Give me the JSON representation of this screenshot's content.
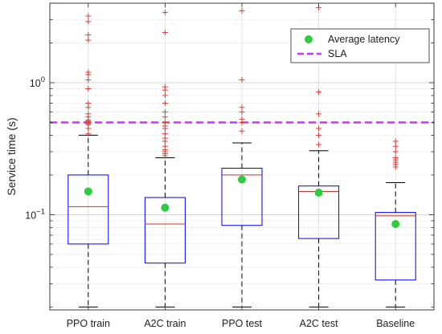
{
  "chart_data": {
    "type": "boxplot",
    "ylabel": "Service time (s)",
    "yscale": "log",
    "ylim": [
      0.019,
      4
    ],
    "y_tick_labels": [
      {
        "value": 0.1,
        "base": "10",
        "exp": "−1"
      },
      {
        "value": 1,
        "base": "10",
        "exp": "0"
      }
    ],
    "grid": true,
    "legend_position": "top-right",
    "categories": [
      "PPO train",
      "A2C train",
      "PPO test",
      "A2C test",
      "Baseline"
    ],
    "boxes": [
      {
        "q1": 0.06,
        "median": 0.115,
        "q3": 0.2,
        "whisker_low": 0.02,
        "whisker_high": 0.4,
        "mean": 0.15,
        "outliers": [
          0.41,
          0.45,
          0.48,
          0.49,
          0.5,
          0.51,
          0.52,
          0.55,
          0.58,
          0.65,
          0.7,
          0.9,
          1.05,
          1.15,
          1.2,
          2.1,
          2.3,
          2.9,
          3.2
        ]
      },
      {
        "q1": 0.043,
        "median": 0.085,
        "q3": 0.135,
        "whisker_low": 0.02,
        "whisker_high": 0.27,
        "mean": 0.113,
        "outliers": [
          0.28,
          0.29,
          0.3,
          0.31,
          0.33,
          0.36,
          0.38,
          0.41,
          0.45,
          0.47,
          0.5,
          0.55,
          0.6,
          0.7,
          0.8,
          0.88,
          0.93,
          2.4,
          3.4
        ]
      },
      {
        "q1": 0.083,
        "median": 0.2,
        "q3": 0.225,
        "whisker_low": 0.02,
        "whisker_high": 0.35,
        "mean": 0.185,
        "outliers": [
          0.43,
          0.5,
          0.53,
          0.6,
          0.65,
          1.05,
          3.5
        ]
      },
      {
        "q1": 0.066,
        "median": 0.15,
        "q3": 0.165,
        "whisker_low": 0.02,
        "whisker_high": 0.305,
        "mean": 0.147,
        "outliers": [
          0.34,
          0.4,
          0.45,
          0.58,
          0.85,
          3.7
        ]
      },
      {
        "q1": 0.032,
        "median": 0.098,
        "q3": 0.104,
        "whisker_low": 0.02,
        "whisker_high": 0.175,
        "mean": 0.085,
        "outliers": [
          0.23,
          0.24,
          0.25,
          0.26,
          0.27,
          0.3,
          0.33,
          0.36
        ]
      }
    ],
    "reference_line": {
      "name": "SLA",
      "value": 0.5
    },
    "legend": [
      {
        "label": "Average latency",
        "kind": "marker"
      },
      {
        "label": "SLA",
        "kind": "line"
      }
    ],
    "colors": {
      "box": "#0000ff",
      "median": "#c0392b",
      "whisker": "#000000",
      "outlier": "#e53935",
      "mean": "#2ecc40",
      "sla": "#cc33ff",
      "grid": "#cfcfcf"
    }
  }
}
